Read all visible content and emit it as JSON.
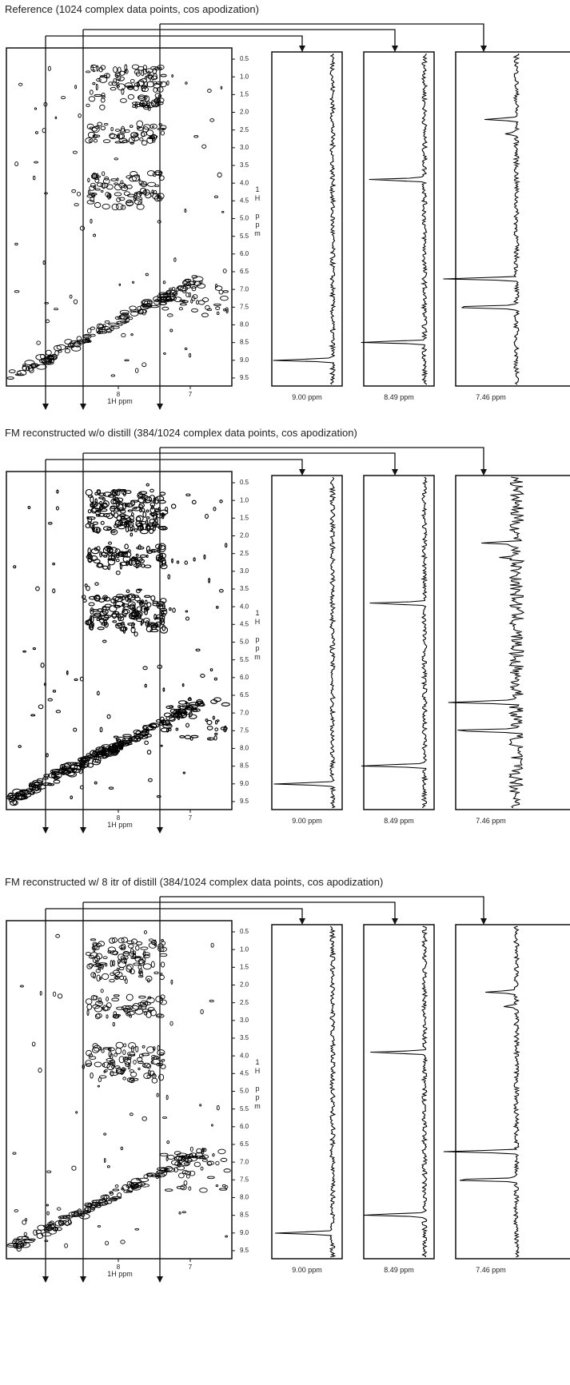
{
  "panels": [
    {
      "title": "Reference (1024 complex data points, cos apodization)",
      "x_axis_label": "1H ppm",
      "y_axis_label": "1H ppm",
      "slices": [
        "9.00 ppm",
        "8.49 ppm",
        "7.46 ppm"
      ]
    },
    {
      "title": "FM reconstructed w/o distill (384/1024 complex data points, cos apodization)",
      "x_axis_label": "1H ppm",
      "y_axis_label": "1H ppm",
      "slices": [
        "9.00 ppm",
        "8.49 ppm",
        "7.46 ppm"
      ]
    },
    {
      "title": "FM reconstructed w/ 8 itr of distill (384/1024 complex data points, cos apodization)",
      "x_axis_label": "1H ppm",
      "y_axis_label": "1H ppm",
      "slices": [
        "9.00 ppm",
        "8.49 ppm",
        "7.46 ppm"
      ]
    }
  ],
  "y_ticks": [
    "0.5",
    "1.0",
    "1.5",
    "2.0",
    "2.5",
    "3.0",
    "3.5",
    "4.0",
    "4.5",
    "5.0",
    "5.5",
    "6.0",
    "6.5",
    "7.0",
    "7.5",
    "8.0",
    "8.5",
    "9.0",
    "9.5"
  ],
  "x_ticks": [
    "8",
    "7"
  ]
}
